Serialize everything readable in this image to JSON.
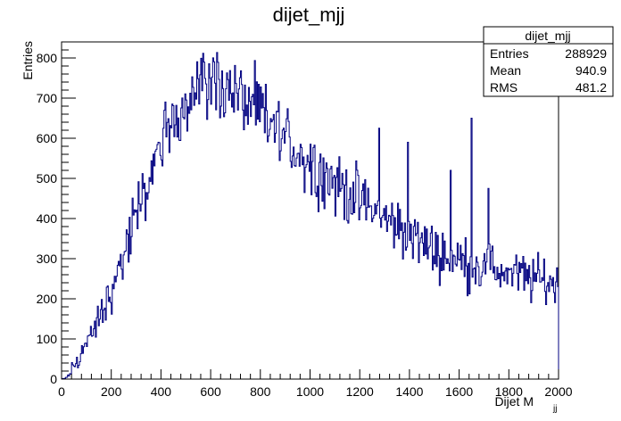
{
  "chart_data": {
    "type": "bar",
    "title": "dijet_mjj",
    "xlabel": "Dijet M",
    "xlabel_subscript": "jj",
    "ylabel": "Entries",
    "xlim": [
      0,
      2000
    ],
    "ylim": [
      0,
      840
    ],
    "x_ticks": [
      0,
      200,
      400,
      600,
      800,
      1000,
      1200,
      1400,
      1600,
      1800,
      2000
    ],
    "y_ticks": [
      0,
      100,
      200,
      300,
      400,
      500,
      600,
      700,
      800
    ],
    "bin_width": 4,
    "line_color": "#000080",
    "grid": false,
    "legend": "none",
    "stats_box": {
      "position": "top-right",
      "title": "dijet_mjj",
      "rows": [
        {
          "label": "Entries",
          "value": "288929"
        },
        {
          "label": "Mean",
          "value": "940.9"
        },
        {
          "label": "RMS",
          "value": "481.2"
        }
      ]
    },
    "envelope": {
      "description_points_x": [
        0,
        20,
        40,
        80,
        120,
        160,
        200,
        240,
        280,
        320,
        360,
        400,
        440,
        480,
        520,
        560,
        600,
        640,
        680,
        720,
        760,
        800,
        900,
        1000,
        1100,
        1200,
        1300,
        1400,
        1500,
        1600,
        1700,
        1800,
        1900,
        2000
      ],
      "description_points_y": [
        0,
        5,
        25,
        65,
        110,
        160,
        220,
        290,
        360,
        440,
        510,
        580,
        630,
        680,
        710,
        735,
        745,
        740,
        720,
        700,
        680,
        660,
        600,
        540,
        490,
        445,
        400,
        360,
        320,
        295,
        280,
        265,
        250,
        235
      ]
    },
    "spikes": [
      {
        "x": 1276,
        "y": 625
      },
      {
        "x": 1392,
        "y": 590
      },
      {
        "x": 1648,
        "y": 650
      },
      {
        "x": 1564,
        "y": 520
      },
      {
        "x": 1716,
        "y": 475
      }
    ]
  }
}
